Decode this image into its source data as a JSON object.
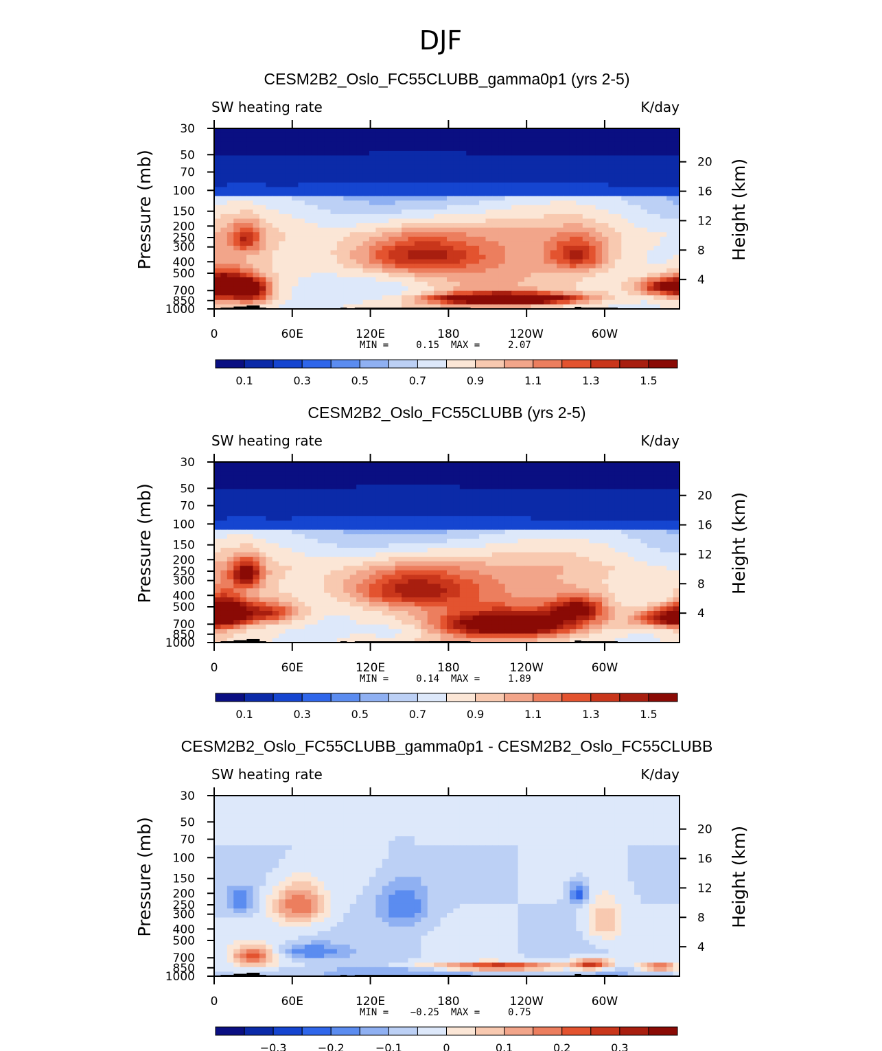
{
  "figure": {
    "season_title": "DJF"
  },
  "colors": {
    "seq_palette": [
      "#0a0f82",
      "#0b2aa8",
      "#1545d0",
      "#2f66ea",
      "#5b8cf0",
      "#8fb0f2",
      "#bcd0f5",
      "#dde8fa",
      "#fbe6d6",
      "#f8c9b0",
      "#f2a58a",
      "#ec7e5e",
      "#e3532f",
      "#c9361b",
      "#a81e0f",
      "#8a0a05"
    ],
    "land": "#000000",
    "frame": "#000000"
  },
  "chart_data": [
    {
      "type": "heatmap",
      "title": "CESM2B2_Oslo_FC55CLUBB_gamma0p1 (yrs 2-5)",
      "left_label": "SW heating rate",
      "right_label": "K/day",
      "xlabel": "",
      "ylabel": "Pressure (mb)",
      "y2label": "Height (km)",
      "x_ticks": [
        "0",
        "60E",
        "120E",
        "180",
        "120W",
        "60W"
      ],
      "x_tick_lon": [
        0,
        60,
        120,
        180,
        240,
        300
      ],
      "xlim_lon": [
        0,
        357.5
      ],
      "y_ticks": [
        "30",
        "50",
        "70",
        "100",
        "150",
        "200",
        "250",
        "300",
        "400",
        "500",
        "700",
        "850",
        "1000"
      ],
      "y_tick_values": [
        30,
        50,
        70,
        100,
        150,
        200,
        250,
        300,
        400,
        500,
        700,
        850,
        1000
      ],
      "ylim_mb": [
        30,
        1000
      ],
      "y2_ticks": [
        "20",
        "16",
        "12",
        "8",
        "4"
      ],
      "y2_tick_values_km": [
        20,
        16,
        12,
        8,
        4
      ],
      "stats": {
        "min_label": "MIN =",
        "min": "0.15",
        "max_label": "MAX =",
        "max": "2.07"
      },
      "colorbar_labels": [
        "0.1",
        "0.3",
        "0.5",
        "0.7",
        "0.9",
        "1.1",
        "1.3",
        "1.5"
      ],
      "contour_levels": [
        0.0,
        0.1,
        0.2,
        0.3,
        0.4,
        0.5,
        0.6,
        0.7,
        0.8,
        0.9,
        1.0,
        1.1,
        1.2,
        1.3,
        1.4,
        1.5
      ],
      "features": [
        {
          "lon": 25,
          "p": 250,
          "value": 1.1,
          "wlon": 8,
          "wp": 50
        },
        {
          "lon": 10,
          "p": 650,
          "value": 1.45,
          "wlon": 12,
          "wp": 120
        },
        {
          "lon": 30,
          "p": 700,
          "value": 1.35,
          "wlon": 10,
          "wp": 120
        },
        {
          "lon": 155,
          "p": 350,
          "value": 1.25,
          "wlon": 35,
          "wp": 100
        },
        {
          "lon": 225,
          "p": 820,
          "value": 2.05,
          "wlon": 35,
          "wp": 55
        },
        {
          "lon": 280,
          "p": 350,
          "value": 1.15,
          "wlon": 15,
          "wp": 80
        },
        {
          "lon": 350,
          "p": 650,
          "value": 1.45,
          "wlon": 18,
          "wp": 80
        },
        {
          "lon": 140,
          "p": 720,
          "value": 0.45,
          "wlon": 25,
          "wp": 150
        },
        {
          "lon": 295,
          "p": 760,
          "value": 0.65,
          "wlon": 18,
          "wp": 80
        }
      ]
    },
    {
      "type": "heatmap",
      "title": "CESM2B2_Oslo_FC55CLUBB (yrs 2-5)",
      "left_label": "SW heating rate",
      "right_label": "K/day",
      "xlabel": "",
      "ylabel": "Pressure (mb)",
      "y2label": "Height (km)",
      "x_ticks": [
        "0",
        "60E",
        "120E",
        "180",
        "120W",
        "60W"
      ],
      "x_tick_lon": [
        0,
        60,
        120,
        180,
        240,
        300
      ],
      "xlim_lon": [
        0,
        357.5
      ],
      "y_ticks": [
        "30",
        "50",
        "70",
        "100",
        "150",
        "200",
        "250",
        "300",
        "400",
        "500",
        "700",
        "850",
        "1000"
      ],
      "y_tick_values": [
        30,
        50,
        70,
        100,
        150,
        200,
        250,
        300,
        400,
        500,
        700,
        850,
        1000
      ],
      "ylim_mb": [
        30,
        1000
      ],
      "y2_ticks": [
        "20",
        "16",
        "12",
        "8",
        "4"
      ],
      "y2_tick_values_km": [
        20,
        16,
        12,
        8,
        4
      ],
      "stats": {
        "min_label": "MIN =",
        "min": "0.14",
        "max_label": "MAX =",
        "max": "1.89"
      },
      "colorbar_labels": [
        "0.1",
        "0.3",
        "0.5",
        "0.7",
        "0.9",
        "1.1",
        "1.3",
        "1.5"
      ],
      "contour_levels": [
        0.0,
        0.1,
        0.2,
        0.3,
        0.4,
        0.5,
        0.6,
        0.7,
        0.8,
        0.9,
        1.0,
        1.1,
        1.2,
        1.3,
        1.4,
        1.5
      ],
      "features": [
        {
          "lon": 25,
          "p": 260,
          "value": 1.35,
          "wlon": 8,
          "wp": 50
        },
        {
          "lon": 8,
          "p": 550,
          "value": 1.35,
          "wlon": 12,
          "wp": 120
        },
        {
          "lon": 40,
          "p": 560,
          "value": 1.2,
          "wlon": 18,
          "wp": 80
        },
        {
          "lon": 150,
          "p": 350,
          "value": 1.3,
          "wlon": 35,
          "wp": 100
        },
        {
          "lon": 230,
          "p": 700,
          "value": 1.55,
          "wlon": 40,
          "wp": 120
        },
        {
          "lon": 280,
          "p": 520,
          "value": 1.3,
          "wlon": 15,
          "wp": 80
        },
        {
          "lon": 350,
          "p": 620,
          "value": 1.4,
          "wlon": 18,
          "wp": 80
        },
        {
          "lon": 150,
          "p": 800,
          "value": 0.4,
          "wlon": 22,
          "wp": 120
        },
        {
          "lon": 295,
          "p": 820,
          "value": 0.55,
          "wlon": 15,
          "wp": 60
        }
      ]
    },
    {
      "type": "heatmap",
      "title": "CESM2B2_Oslo_FC55CLUBB_gamma0p1 - CESM2B2_Oslo_FC55CLUBB",
      "left_label": "SW heating rate",
      "right_label": "K/day",
      "xlabel": "",
      "ylabel": "Pressure (mb)",
      "y2label": "Height (km)",
      "x_ticks": [
        "0",
        "60E",
        "120E",
        "180",
        "120W",
        "60W"
      ],
      "x_tick_lon": [
        0,
        60,
        120,
        180,
        240,
        300
      ],
      "xlim_lon": [
        0,
        357.5
      ],
      "y_ticks": [
        "30",
        "50",
        "70",
        "100",
        "150",
        "200",
        "250",
        "300",
        "400",
        "500",
        "700",
        "850",
        "1000"
      ],
      "y_tick_values": [
        30,
        50,
        70,
        100,
        150,
        200,
        250,
        300,
        400,
        500,
        700,
        850,
        1000
      ],
      "ylim_mb": [
        30,
        1000
      ],
      "y2_ticks": [
        "20",
        "16",
        "12",
        "8",
        "4"
      ],
      "y2_tick_values_km": [
        20,
        16,
        12,
        8,
        4
      ],
      "stats": {
        "min_label": "MIN =",
        "min": "−0.25",
        "max_label": "MAX =",
        "max": "0.75"
      },
      "colorbar_labels": [
        "−0.3",
        "−0.2",
        "−0.1",
        "0",
        "0.1",
        "0.2",
        "0.3"
      ],
      "contour_levels": [
        -0.35,
        -0.3,
        -0.25,
        -0.2,
        -0.15,
        -0.1,
        -0.05,
        0.0,
        0.05,
        0.1,
        0.15,
        0.2,
        0.25,
        0.3,
        0.35,
        0.4
      ],
      "features": [
        {
          "lon": 20,
          "p": 230,
          "value": -0.15,
          "wlon": 8,
          "wp": 40
        },
        {
          "lon": 65,
          "p": 250,
          "value": 0.25,
          "wlon": 14,
          "wp": 70
        },
        {
          "lon": 145,
          "p": 250,
          "value": -0.15,
          "wlon": 14,
          "wp": 80
        },
        {
          "lon": 280,
          "p": 200,
          "value": -0.2,
          "wlon": 5,
          "wp": 30
        },
        {
          "lon": 300,
          "p": 350,
          "value": 0.15,
          "wlon": 10,
          "wp": 100
        },
        {
          "lon": 30,
          "p": 680,
          "value": 0.25,
          "wlon": 12,
          "wp": 100
        },
        {
          "lon": 75,
          "p": 620,
          "value": -0.15,
          "wlon": 20,
          "wp": 70
        },
        {
          "lon": 220,
          "p": 830,
          "value": 0.35,
          "wlon": 35,
          "wp": 45
        },
        {
          "lon": 290,
          "p": 800,
          "value": 0.3,
          "wlon": 10,
          "wp": 70
        },
        {
          "lon": 342,
          "p": 840,
          "value": 0.3,
          "wlon": 10,
          "wp": 40
        },
        {
          "lon": 150,
          "p": 920,
          "value": -0.15,
          "wlon": 60,
          "wp": 35
        },
        {
          "lon": 300,
          "p": 920,
          "value": -0.1,
          "wlon": 25,
          "wp": 40
        }
      ]
    }
  ]
}
